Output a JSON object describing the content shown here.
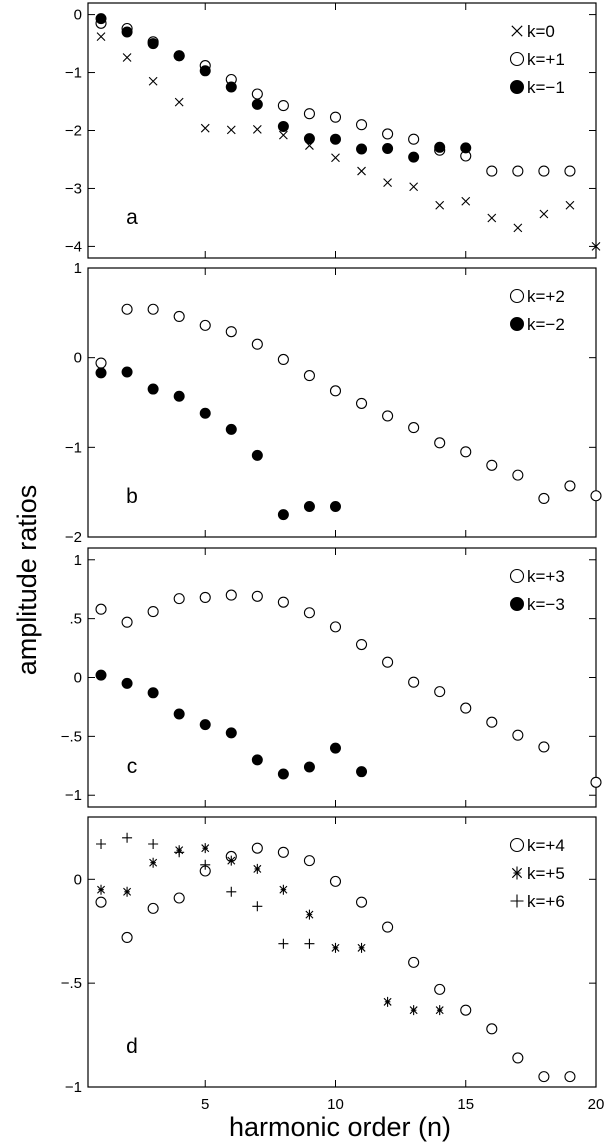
{
  "figure": {
    "ylabel": "amplitude ratios",
    "xlabel": "harmonic order (n)"
  },
  "chart_data": [
    {
      "type": "scatter",
      "panel": "a",
      "xlim": [
        0.5,
        20
      ],
      "ylim": [
        -4.2,
        0.2
      ],
      "xticks": [
        5,
        10,
        15,
        20
      ],
      "xtick_labels": [
        "",
        "",
        "",
        ""
      ],
      "yticks": [
        0,
        -1,
        -2,
        -3,
        -4
      ],
      "ytick_labels": [
        "0",
        "−1",
        "−2",
        "−3",
        "−4"
      ],
      "legend_position": "top-right",
      "series": [
        {
          "name": "k=0",
          "marker": "cross",
          "x": [
            1,
            2,
            3,
            4,
            5,
            6,
            7,
            8,
            9,
            10,
            11,
            12,
            13,
            14,
            15,
            16,
            17,
            18,
            19,
            20
          ],
          "y": [
            -0.38,
            -0.74,
            -1.15,
            -1.51,
            -1.96,
            -1.99,
            -1.98,
            -2.08,
            -2.26,
            -2.47,
            -2.7,
            -2.9,
            -2.97,
            -3.29,
            -3.22,
            -3.51,
            -3.68,
            -3.44,
            -3.29,
            -4.0
          ]
        },
        {
          "name": "k=+1",
          "marker": "open-circle",
          "x": [
            1,
            2,
            3,
            4,
            5,
            6,
            7,
            8,
            9,
            10,
            11,
            12,
            13,
            14,
            15,
            16,
            17,
            18,
            19
          ],
          "y": [
            -0.15,
            -0.24,
            -0.47,
            -0.71,
            -0.88,
            -1.12,
            -1.37,
            -1.57,
            -1.71,
            -1.77,
            -1.9,
            -2.06,
            -2.15,
            -2.34,
            -2.44,
            -2.7,
            -2.7,
            -2.7,
            -2.7
          ]
        },
        {
          "name": "k=−1",
          "marker": "filled-circle",
          "x": [
            1,
            2,
            3,
            4,
            5,
            6,
            7,
            8,
            9,
            10,
            11,
            12,
            13,
            14,
            15
          ],
          "y": [
            -0.07,
            -0.3,
            -0.5,
            -0.71,
            -0.97,
            -1.25,
            -1.55,
            -1.93,
            -2.14,
            -2.15,
            -2.32,
            -2.31,
            -2.46,
            -2.29,
            -2.3
          ]
        }
      ]
    },
    {
      "type": "scatter",
      "panel": "b",
      "xlim": [
        0.5,
        20
      ],
      "ylim": [
        -2,
        1
      ],
      "xticks": [
        5,
        10,
        15,
        20
      ],
      "xtick_labels": [
        "",
        "",
        "",
        ""
      ],
      "yticks": [
        1,
        0,
        -1,
        -2
      ],
      "ytick_labels": [
        "1",
        "0",
        "−1",
        "−2"
      ],
      "legend_position": "top-right",
      "series": [
        {
          "name": "k=+2",
          "marker": "open-circle",
          "x": [
            1,
            2,
            3,
            4,
            5,
            6,
            7,
            8,
            9,
            10,
            11,
            12,
            13,
            14,
            15,
            16,
            17,
            18,
            19,
            20
          ],
          "y": [
            -0.06,
            0.54,
            0.54,
            0.46,
            0.36,
            0.29,
            0.15,
            -0.02,
            -0.2,
            -0.37,
            -0.51,
            -0.65,
            -0.78,
            -0.95,
            -1.05,
            -1.2,
            -1.31,
            -1.57,
            -1.43,
            -1.54
          ]
        },
        {
          "name": "k=−2",
          "marker": "filled-circle",
          "x": [
            1,
            2,
            3,
            4,
            5,
            6,
            7,
            8,
            9,
            10
          ],
          "y": [
            -0.17,
            -0.16,
            -0.35,
            -0.43,
            -0.62,
            -0.8,
            -1.09,
            -1.75,
            -1.66,
            -1.66
          ]
        }
      ]
    },
    {
      "type": "scatter",
      "panel": "c",
      "xlim": [
        0.5,
        20
      ],
      "ylim": [
        -1.1,
        1.1
      ],
      "xticks": [
        5,
        10,
        15,
        20
      ],
      "xtick_labels": [
        "",
        "",
        "",
        ""
      ],
      "yticks": [
        1,
        0.5,
        0,
        -0.5,
        -1
      ],
      "ytick_labels": [
        "1",
        ".5",
        "0",
        "−.5",
        "−1"
      ],
      "legend_position": "top-right",
      "series": [
        {
          "name": "k=+3",
          "marker": "open-circle",
          "x": [
            1,
            2,
            3,
            4,
            5,
            6,
            7,
            8,
            9,
            10,
            11,
            12,
            13,
            14,
            15,
            16,
            17,
            18,
            20
          ],
          "y": [
            0.58,
            0.47,
            0.56,
            0.67,
            0.68,
            0.7,
            0.69,
            0.64,
            0.55,
            0.43,
            0.28,
            0.13,
            -0.04,
            -0.12,
            -0.26,
            -0.38,
            -0.49,
            -0.59,
            -0.89
          ]
        },
        {
          "name": "k=−3",
          "marker": "filled-circle",
          "x": [
            1,
            2,
            3,
            4,
            5,
            6,
            7,
            8,
            9,
            10,
            11
          ],
          "y": [
            0.02,
            -0.05,
            -0.13,
            -0.31,
            -0.4,
            -0.47,
            -0.7,
            -0.82,
            -0.76,
            -0.6,
            -0.8
          ]
        }
      ]
    },
    {
      "type": "scatter",
      "panel": "d",
      "xlim": [
        0.5,
        20
      ],
      "ylim": [
        -1.0,
        0.3
      ],
      "xticks": [
        5,
        10,
        15,
        20
      ],
      "xtick_labels": [
        "5",
        "10",
        "15",
        "20"
      ],
      "yticks": [
        0,
        -0.5,
        -1
      ],
      "ytick_labels": [
        "0",
        "−.5",
        "−1"
      ],
      "legend_position": "top-right",
      "series": [
        {
          "name": "k=+4",
          "marker": "open-circle",
          "x": [
            1,
            2,
            3,
            4,
            5,
            6,
            7,
            8,
            9,
            10,
            11,
            12,
            13,
            14,
            15,
            16,
            17,
            18,
            19
          ],
          "y": [
            -0.11,
            -0.28,
            -0.14,
            -0.09,
            0.04,
            0.11,
            0.15,
            0.13,
            0.09,
            -0.01,
            -0.11,
            -0.23,
            -0.4,
            -0.53,
            -0.63,
            -0.72,
            -0.86,
            -0.95,
            -0.95
          ]
        },
        {
          "name": "k=+5",
          "marker": "asterisk",
          "x": [
            1,
            2,
            3,
            4,
            5,
            6,
            7,
            8,
            9,
            10,
            11,
            12,
            13,
            14
          ],
          "y": [
            -0.05,
            -0.06,
            0.08,
            0.14,
            0.15,
            0.09,
            0.05,
            -0.05,
            -0.17,
            -0.33,
            -0.33,
            -0.59,
            -0.63,
            -0.63
          ]
        },
        {
          "name": "k=+6",
          "marker": "plus",
          "x": [
            1,
            2,
            3,
            4,
            5,
            6,
            7,
            8,
            9
          ],
          "y": [
            0.17,
            0.2,
            0.17,
            0.13,
            0.07,
            -0.06,
            -0.13,
            -0.31,
            -0.31
          ]
        }
      ]
    }
  ]
}
